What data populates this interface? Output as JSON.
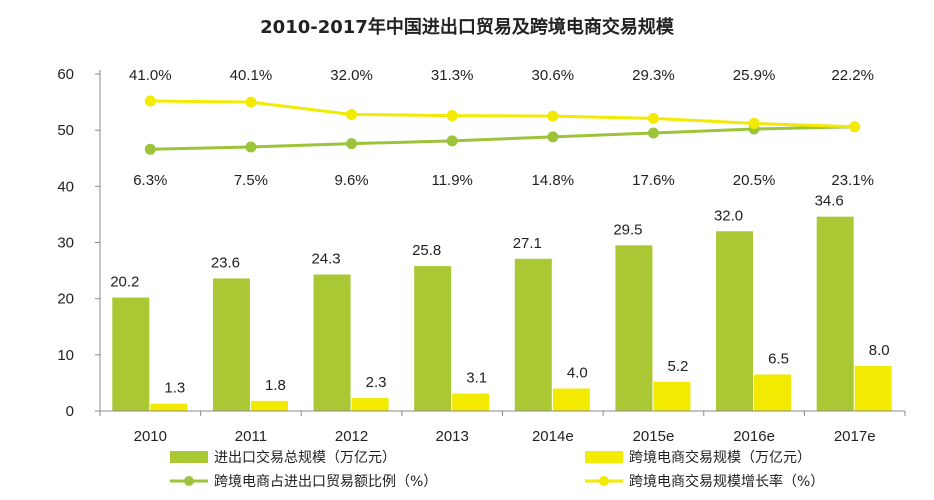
{
  "chart_data": {
    "type": "bar",
    "title": "2010-2017年中国进出口贸易及跨境电商交易规模",
    "categories": [
      "2010",
      "2011",
      "2012",
      "2013",
      "2014e",
      "2015e",
      "2016e",
      "2017e"
    ],
    "ylim": [
      0,
      60
    ],
    "yticks": [
      0,
      10,
      20,
      30,
      40,
      50,
      60
    ],
    "bar_series": [
      {
        "name": "进出口交易总规模（万亿元）",
        "color": "#a9c834",
        "values": [
          20.2,
          23.6,
          24.3,
          25.8,
          27.1,
          29.5,
          32.0,
          34.6
        ],
        "labels": [
          "20.2",
          "23.6",
          "24.3",
          "25.8",
          "27.1",
          "29.5",
          "32.0",
          "34.6"
        ]
      },
      {
        "name": "跨境电商交易规模（万亿元）",
        "color": "#f2ea00",
        "values": [
          1.3,
          1.8,
          2.3,
          3.1,
          4.0,
          5.2,
          6.5,
          8.0
        ],
        "labels": [
          "1.3",
          "1.8",
          "2.3",
          "3.1",
          "4.0",
          "5.2",
          "6.5",
          "8.0"
        ]
      }
    ],
    "line_series": [
      {
        "name": "跨境电商占进出口贸易额比例（%）",
        "color": "#9cc43a",
        "plot_y": [
          46.6,
          47.0,
          47.6,
          48.1,
          48.8,
          49.5,
          50.2,
          50.6
        ],
        "labels": [
          "6.3%",
          "7.5%",
          "9.6%",
          "11.9%",
          "14.8%",
          "17.6%",
          "20.5%",
          "23.1%"
        ],
        "label_position": "below"
      },
      {
        "name": "跨境电商交易规模增长率（%）",
        "color": "#f2ea00",
        "plot_y": [
          55.2,
          55.0,
          52.8,
          52.6,
          52.5,
          52.1,
          51.2,
          50.6
        ],
        "labels": [
          "41.0%",
          "40.1%",
          "32.0%",
          "31.3%",
          "30.6%",
          "29.3%",
          "25.9%",
          "22.2%"
        ],
        "label_position": "above"
      }
    ],
    "legend": [
      "进出口交易总规模（万亿元）",
      "跨境电商交易规模（万亿元）",
      "跨境电商占进出口贸易额比例（%）",
      "跨境电商交易规模增长率（%）"
    ]
  }
}
